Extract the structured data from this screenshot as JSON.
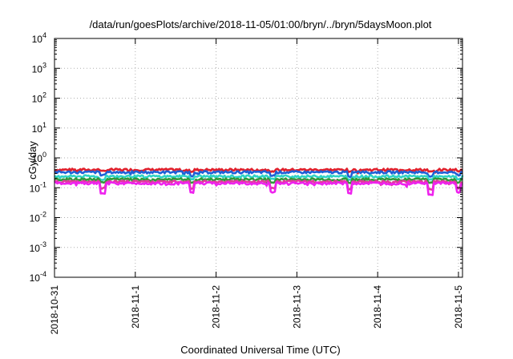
{
  "chart_data": {
    "type": "line",
    "title": "/data/run/goesPlots/archive/2018-11-05/01:00/bryn/../bryn/5daysMoon.plot",
    "xlabel": "Coordinated Universal Time (UTC)",
    "ylabel": "cGy/day",
    "yscale": "log",
    "ylim": [
      0.0001,
      10000
    ],
    "y_ticks": [
      {
        "base": "10",
        "exp": "-4"
      },
      {
        "base": "10",
        "exp": "-3"
      },
      {
        "base": "10",
        "exp": "-2"
      },
      {
        "base": "10",
        "exp": "-1"
      },
      {
        "base": "10",
        "exp": "0"
      },
      {
        "base": "10",
        "exp": "1"
      },
      {
        "base": "10",
        "exp": "2"
      },
      {
        "base": "10",
        "exp": "3"
      },
      {
        "base": "10",
        "exp": "4"
      }
    ],
    "x_ticks": [
      "2018-10-31",
      "2018-11-1",
      "2018-11-2",
      "2018-11-3",
      "2018-11-4",
      "2018-11-5"
    ],
    "xlim_days": [
      0,
      5.05
    ],
    "grid": true,
    "series": [
      {
        "color": "#e0202c",
        "base": 0.4,
        "dips": [
          [
            0.6,
            0.9
          ],
          [
            1.7,
            0.85
          ],
          [
            2.7,
            0.88
          ],
          [
            3.65,
            0.85
          ],
          [
            4.65,
            0.85
          ],
          [
            5.0,
            0.9
          ]
        ]
      },
      {
        "color": "#1f5fd6",
        "base": 0.33,
        "dips": [
          [
            0.6,
            0.8
          ],
          [
            1.7,
            0.75
          ],
          [
            2.7,
            0.78
          ],
          [
            3.65,
            0.72
          ],
          [
            4.65,
            0.74
          ],
          [
            5.0,
            0.8
          ]
        ]
      },
      {
        "color": "#2fd3c6",
        "base": 0.24,
        "dips": [
          [
            0.6,
            0.8
          ],
          [
            1.7,
            0.8
          ],
          [
            2.7,
            0.8
          ],
          [
            3.65,
            0.78
          ],
          [
            4.65,
            0.78
          ],
          [
            5.0,
            0.8
          ]
        ]
      },
      {
        "color": "#2f9a3a",
        "base": 0.19,
        "dips": [
          [
            0.6,
            0.8
          ],
          [
            1.7,
            0.8
          ],
          [
            2.7,
            0.8
          ],
          [
            3.65,
            0.78
          ],
          [
            4.65,
            0.78
          ],
          [
            5.0,
            0.8
          ]
        ]
      },
      {
        "color": "#e03a9a",
        "base": 0.16,
        "dips": [
          [
            0.6,
            0.6
          ],
          [
            1.7,
            0.6
          ],
          [
            2.7,
            0.6
          ],
          [
            3.65,
            0.55
          ],
          [
            4.65,
            0.55
          ],
          [
            5.0,
            0.6
          ]
        ]
      },
      {
        "color": "#ee22ee",
        "base": 0.14,
        "dips": [
          [
            0.6,
            0.45
          ],
          [
            1.7,
            0.5
          ],
          [
            2.7,
            0.5
          ],
          [
            3.65,
            0.45
          ],
          [
            4.65,
            0.42
          ],
          [
            5.0,
            0.5
          ]
        ]
      }
    ]
  }
}
